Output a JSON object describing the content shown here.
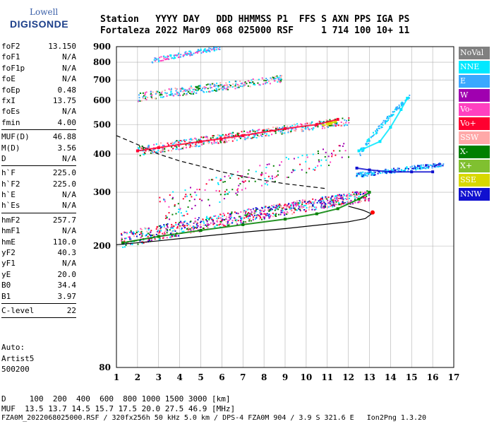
{
  "logo": {
    "line1": "Lowell",
    "line2": "DIGISONDE"
  },
  "header": {
    "line1": "Station   YYYY DAY   DDD HHMMSS P1  FFS S AXN PPS IGA PS",
    "line2": "Fortaleza 2022 Mar09 068 025000 RSF     1 714 100 10+ 11"
  },
  "params": [
    {
      "name": "foF2",
      "value": "13.150"
    },
    {
      "name": "foF1",
      "value": "N/A"
    },
    {
      "name": "foF1p",
      "value": "N/A"
    },
    {
      "name": "foE",
      "value": "N/A"
    },
    {
      "name": "foEp",
      "value": "0.48"
    },
    {
      "name": "fxI",
      "value": "13.75"
    },
    {
      "name": "foEs",
      "value": "N/A"
    },
    {
      "name": "fmin",
      "value": "4.00"
    },
    {
      "sep": true
    },
    {
      "name": "MUF(D)",
      "value": "46.88"
    },
    {
      "name": "M(D)",
      "value": "3.56"
    },
    {
      "name": "D",
      "value": "N/A"
    },
    {
      "sep": true
    },
    {
      "name": "h`F",
      "value": "225.0"
    },
    {
      "name": "h`F2",
      "value": "225.0"
    },
    {
      "name": "h`E",
      "value": "N/A"
    },
    {
      "name": "h`Es",
      "value": "N/A"
    },
    {
      "sep": true
    },
    {
      "name": "hmF2",
      "value": "257.7"
    },
    {
      "name": "hmF1",
      "value": "N/A"
    },
    {
      "name": "hmE",
      "value": "110.0"
    },
    {
      "name": "yF2",
      "value": "40.3"
    },
    {
      "name": "yF1",
      "value": "N/A"
    },
    {
      "name": "yE",
      "value": "20.0"
    },
    {
      "name": "B0",
      "value": "34.4"
    },
    {
      "name": "B1",
      "value": "3.97"
    },
    {
      "sep": true
    },
    {
      "name": "C-level",
      "value": "22"
    },
    {
      "sep": true
    }
  ],
  "auto": {
    "line1": "Auto:",
    "line2": "Artist5",
    "line3": "500200"
  },
  "legend": [
    {
      "label": "NoVal",
      "color": "#808080"
    },
    {
      "label": "NNE",
      "color": "#00e8ff"
    },
    {
      "label": "E",
      "color": "#3aa8ff"
    },
    {
      "label": "W",
      "color": "#a000b0"
    },
    {
      "label": "Vo-",
      "color": "#ff40c0"
    },
    {
      "label": "Vo+",
      "color": "#ff0030"
    },
    {
      "label": "SSW",
      "color": "#ffa8a8"
    },
    {
      "label": "X-",
      "color": "#008000"
    },
    {
      "label": "X+",
      "color": "#80c030"
    },
    {
      "label": "SSE",
      "color": "#d8d800"
    },
    {
      "label": "NNW",
      "color": "#1010d0"
    }
  ],
  "footer": {
    "line1": "D     100  200  400  600  800 1000 1500 3000 [km]",
    "line2": "MUF  13.5 13.7 14.5 15.7 17.5 20.0 27.5 46.9 [MHz]",
    "line3": "FZA0M_2022068025000.RSF / 320fx256h 50 kHz 5.0 km / DPS-4 FZA0M 904 / 3.9 S 321.6 E   Ion2Png 1.3.20"
  },
  "chart_data": {
    "type": "scatter",
    "title": "",
    "xlabel": "",
    "ylabel": "",
    "xlim": [
      1,
      17
    ],
    "ylim": [
      80,
      900
    ],
    "y_scale": "log",
    "x_ticks": [
      1,
      2,
      3,
      4,
      5,
      6,
      7,
      8,
      9,
      10,
      11,
      12,
      13,
      14,
      15,
      16,
      17
    ],
    "y_ticks": [
      80,
      200,
      300,
      400,
      500,
      600,
      700,
      800,
      900
    ],
    "grid": true,
    "legend_position": "right",
    "series": [
      {
        "name": "X- (hop 1 trace)",
        "color": "#008000",
        "x": [
          1.3,
          3,
          5,
          7,
          9,
          10.5,
          11.5,
          12.5,
          13
        ],
        "y": [
          205,
          215,
          225,
          235,
          245,
          255,
          265,
          285,
          300
        ]
      },
      {
        "name": "Vo+ (hop 2 trace)",
        "color": "#ff0030",
        "x": [
          2,
          3,
          5,
          7,
          9,
          10.5,
          11.5
        ],
        "y": [
          410,
          420,
          440,
          460,
          485,
          500,
          520
        ]
      },
      {
        "name": "NNW (spread F)",
        "color": "#1010d0",
        "x": [
          12.4,
          13,
          14,
          15,
          16
        ],
        "y": [
          360,
          355,
          350,
          350,
          350
        ]
      },
      {
        "name": "NNE (oblique)",
        "color": "#00e8ff",
        "x": [
          12.5,
          13.5,
          14,
          14.5,
          14.8
        ],
        "y": [
          410,
          440,
          490,
          560,
          610
        ]
      }
    ],
    "profile_line": {
      "x": [
        1,
        3,
        5,
        7,
        9,
        11,
        12,
        12.8,
        13.1,
        12.7,
        12
      ],
      "y": [
        202,
        208,
        215,
        222,
        228,
        236,
        240,
        246,
        255,
        262,
        270
      ]
    },
    "muf_curve": {
      "x": [
        1,
        2,
        3,
        4,
        5,
        6,
        7,
        8,
        9,
        10,
        11
      ],
      "y": [
        460,
        430,
        400,
        380,
        365,
        350,
        338,
        328,
        320,
        314,
        308
      ]
    }
  }
}
